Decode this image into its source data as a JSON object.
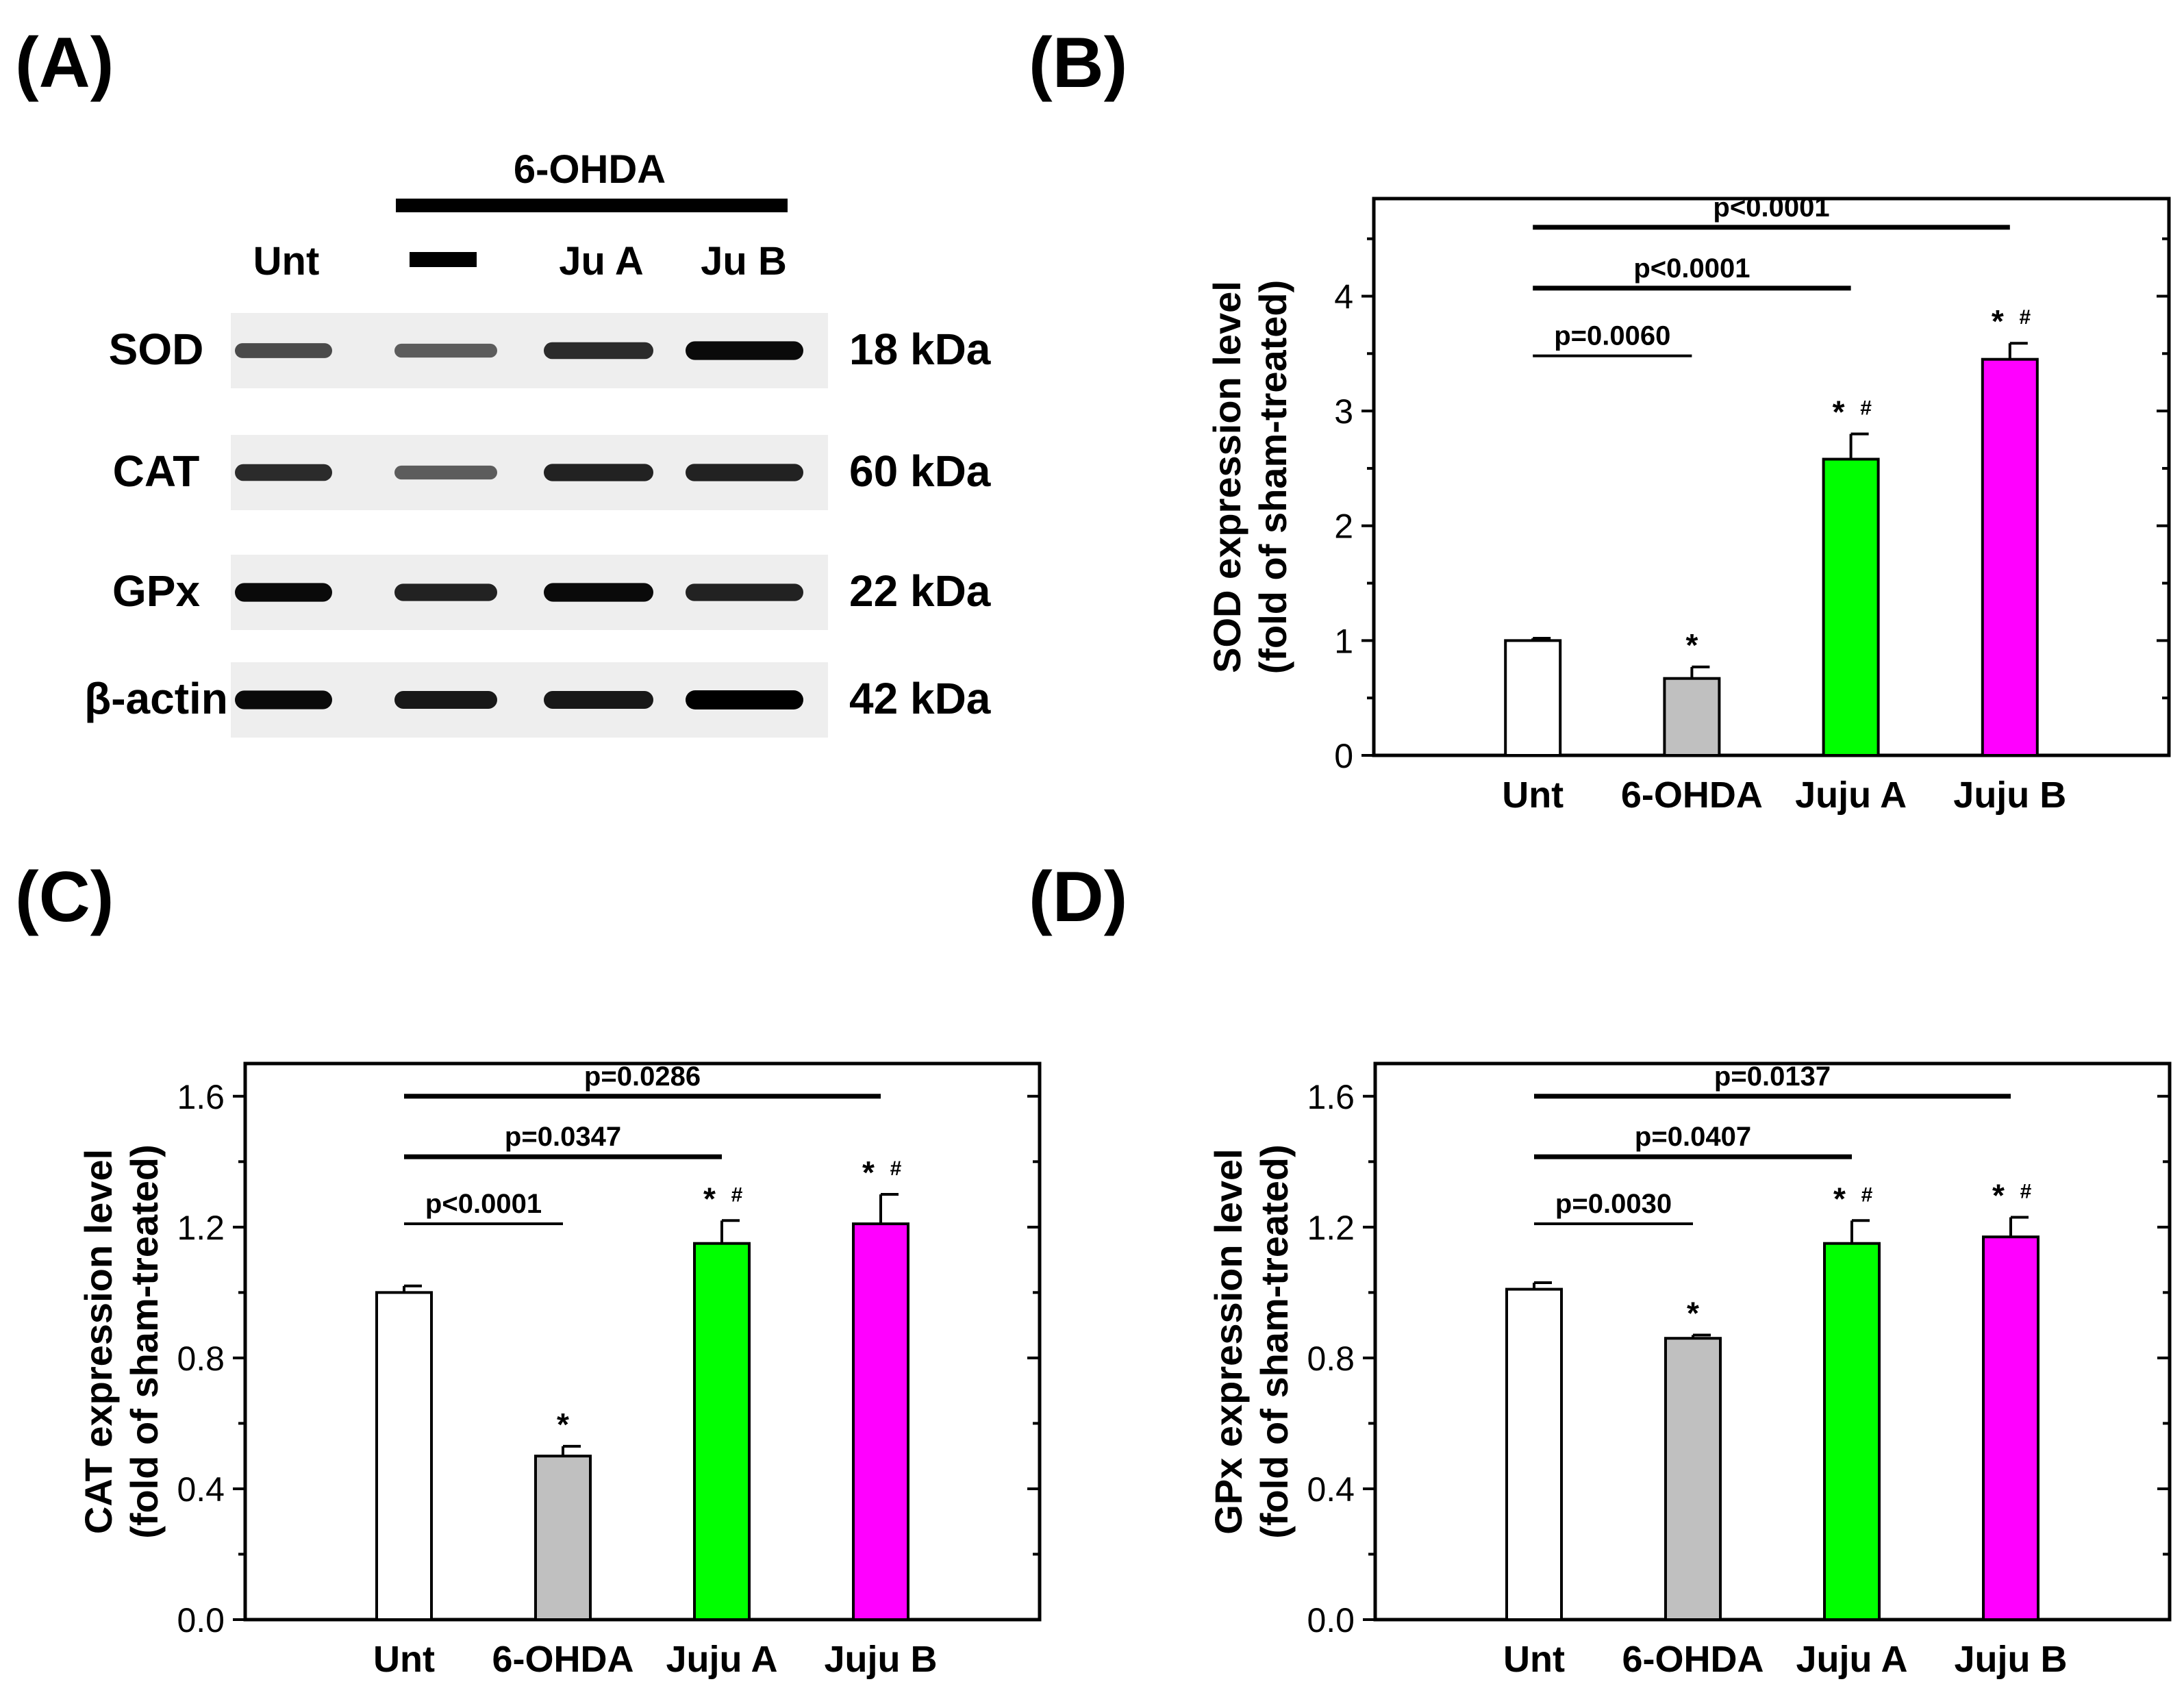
{
  "panel_labels": [
    "(A)",
    "(B)",
    "(C)",
    "(D)"
  ],
  "blot": {
    "treatment_header": "6-OHDA",
    "lane_labels": [
      "Unt",
      "Ju A",
      "Ju B"
    ],
    "vehicle_lane_mark": "dash",
    "rows": [
      {
        "protein": "SOD",
        "size": "18 kDa",
        "intensity": [
          0.55,
          0.45,
          0.75,
          0.95
        ]
      },
      {
        "protein": "CAT",
        "size": "60 kDa",
        "intensity": [
          0.75,
          0.45,
          0.8,
          0.8
        ]
      },
      {
        "protein": "GPx",
        "size": "22 kDa",
        "intensity": [
          0.95,
          0.8,
          0.95,
          0.8
        ]
      },
      {
        "protein": "β-actin",
        "size": "42 kDa",
        "intensity": [
          0.95,
          0.85,
          0.85,
          1.0
        ]
      }
    ]
  },
  "colors": {
    "unt": "#ffffff",
    "ohda": "#c0c0c0",
    "juju_a": "#00ff00",
    "juju_b": "#ff00ff",
    "axis": "#000000"
  },
  "chart_data": [
    {
      "panel": "(B)",
      "type": "bar",
      "categories": [
        "Unt",
        "6-OHDA",
        "Juju A",
        "Juju B"
      ],
      "values": [
        1.0,
        0.67,
        2.58,
        3.45
      ],
      "errors": [
        0.02,
        0.1,
        0.22,
        0.14
      ],
      "markers": [
        "",
        "*",
        "* #",
        "* #"
      ],
      "ylabel": [
        "SOD expression level",
        "(fold of sham-treated)"
      ],
      "ylim": [
        0,
        4.85
      ],
      "yticks": [
        "0",
        "1",
        "2",
        "3",
        "4"
      ],
      "ytick_values": [
        0,
        1,
        2,
        3,
        4
      ],
      "ytick_step": 0.5,
      "comparisons": [
        {
          "text": "p=0.0060",
          "from": 0,
          "to": 1,
          "level": 3.48,
          "heavy": false
        },
        {
          "text": "p<0.0001",
          "from": 0,
          "to": 2,
          "level": 4.07,
          "heavy": true
        },
        {
          "text": "p<0.0001",
          "from": 0,
          "to": 3,
          "level": 4.6,
          "heavy": true
        }
      ]
    },
    {
      "panel": "(C)",
      "type": "bar",
      "categories": [
        "Unt",
        "6-OHDA",
        "Juju A",
        "Juju B"
      ],
      "values": [
        1.0,
        0.5,
        1.15,
        1.21
      ],
      "errors": [
        0.02,
        0.03,
        0.07,
        0.09
      ],
      "markers": [
        "",
        "*",
        "* #",
        "* #"
      ],
      "ylabel": [
        "CAT expression level",
        "(fold of sham-treated)"
      ],
      "ylim": [
        0,
        1.7
      ],
      "yticks": [
        "0.0",
        "0.4",
        "0.8",
        "1.2",
        "1.6"
      ],
      "ytick_values": [
        0,
        0.4,
        0.8,
        1.2,
        1.6
      ],
      "ytick_step": 0.2,
      "comparisons": [
        {
          "text": "p<0.0001",
          "from": 0,
          "to": 1,
          "level": 1.21,
          "heavy": false
        },
        {
          "text": "p=0.0347",
          "from": 0,
          "to": 2,
          "level": 1.415,
          "heavy": true
        },
        {
          "text": "p=0.0286",
          "from": 0,
          "to": 3,
          "level": 1.6,
          "heavy": true
        }
      ]
    },
    {
      "panel": "(D)",
      "type": "bar",
      "categories": [
        "Unt",
        "6-OHDA",
        "Juju A",
        "Juju B"
      ],
      "values": [
        1.01,
        0.86,
        1.15,
        1.17
      ],
      "errors": [
        0.02,
        0.01,
        0.07,
        0.06
      ],
      "markers": [
        "",
        "*",
        "* #",
        "* #"
      ],
      "ylabel": [
        "GPx expression level",
        "(fold of sham-treated)"
      ],
      "ylim": [
        0,
        1.7
      ],
      "yticks": [
        "0.0",
        "0.4",
        "0.8",
        "1.2",
        "1.6"
      ],
      "ytick_values": [
        0,
        0.4,
        0.8,
        1.2,
        1.6
      ],
      "ytick_step": 0.2,
      "comparisons": [
        {
          "text": "p=0.0030",
          "from": 0,
          "to": 1,
          "level": 1.21,
          "heavy": false
        },
        {
          "text": "p=0.0407",
          "from": 0,
          "to": 2,
          "level": 1.415,
          "heavy": true
        },
        {
          "text": "p=0.0137",
          "from": 0,
          "to": 3,
          "level": 1.6,
          "heavy": true
        }
      ]
    }
  ]
}
